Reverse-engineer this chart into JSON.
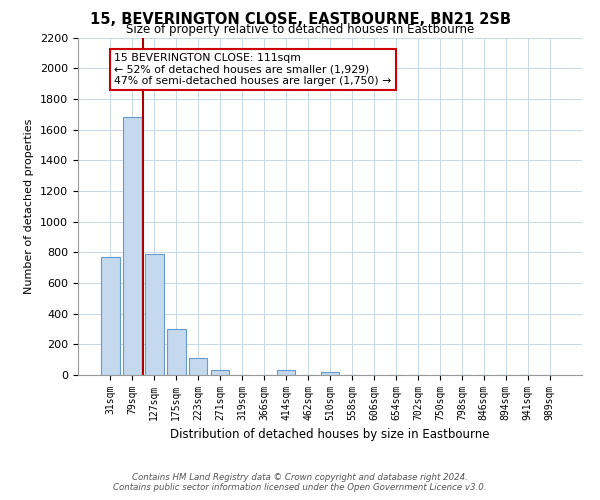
{
  "title": "15, BEVERINGTON CLOSE, EASTBOURNE, BN21 2SB",
  "subtitle": "Size of property relative to detached houses in Eastbourne",
  "xlabel": "Distribution of detached houses by size in Eastbourne",
  "ylabel": "Number of detached properties",
  "categories": [
    "31sqm",
    "79sqm",
    "127sqm",
    "175sqm",
    "223sqm",
    "271sqm",
    "319sqm",
    "366sqm",
    "414sqm",
    "462sqm",
    "510sqm",
    "558sqm",
    "606sqm",
    "654sqm",
    "702sqm",
    "750sqm",
    "798sqm",
    "846sqm",
    "894sqm",
    "941sqm",
    "989sqm"
  ],
  "values": [
    770,
    1680,
    790,
    300,
    110,
    35,
    0,
    0,
    35,
    0,
    20,
    0,
    0,
    0,
    0,
    0,
    0,
    0,
    0,
    0,
    0
  ],
  "bar_color": "#c5d9ee",
  "bar_edge_color": "#6699cc",
  "red_line_color": "#aa0000",
  "annotation_title": "15 BEVERINGTON CLOSE: 111sqm",
  "annotation_line1": "← 52% of detached houses are smaller (1,929)",
  "annotation_line2": "47% of semi-detached houses are larger (1,750) →",
  "annotation_box_edge": "#cc0000",
  "ylim": [
    0,
    2200
  ],
  "yticks": [
    0,
    200,
    400,
    600,
    800,
    1000,
    1200,
    1400,
    1600,
    1800,
    2000,
    2200
  ],
  "footer1": "Contains HM Land Registry data © Crown copyright and database right 2024.",
  "footer2": "Contains public sector information licensed under the Open Government Licence v3.0.",
  "background_color": "#ffffff",
  "grid_color": "#c8d8e8"
}
